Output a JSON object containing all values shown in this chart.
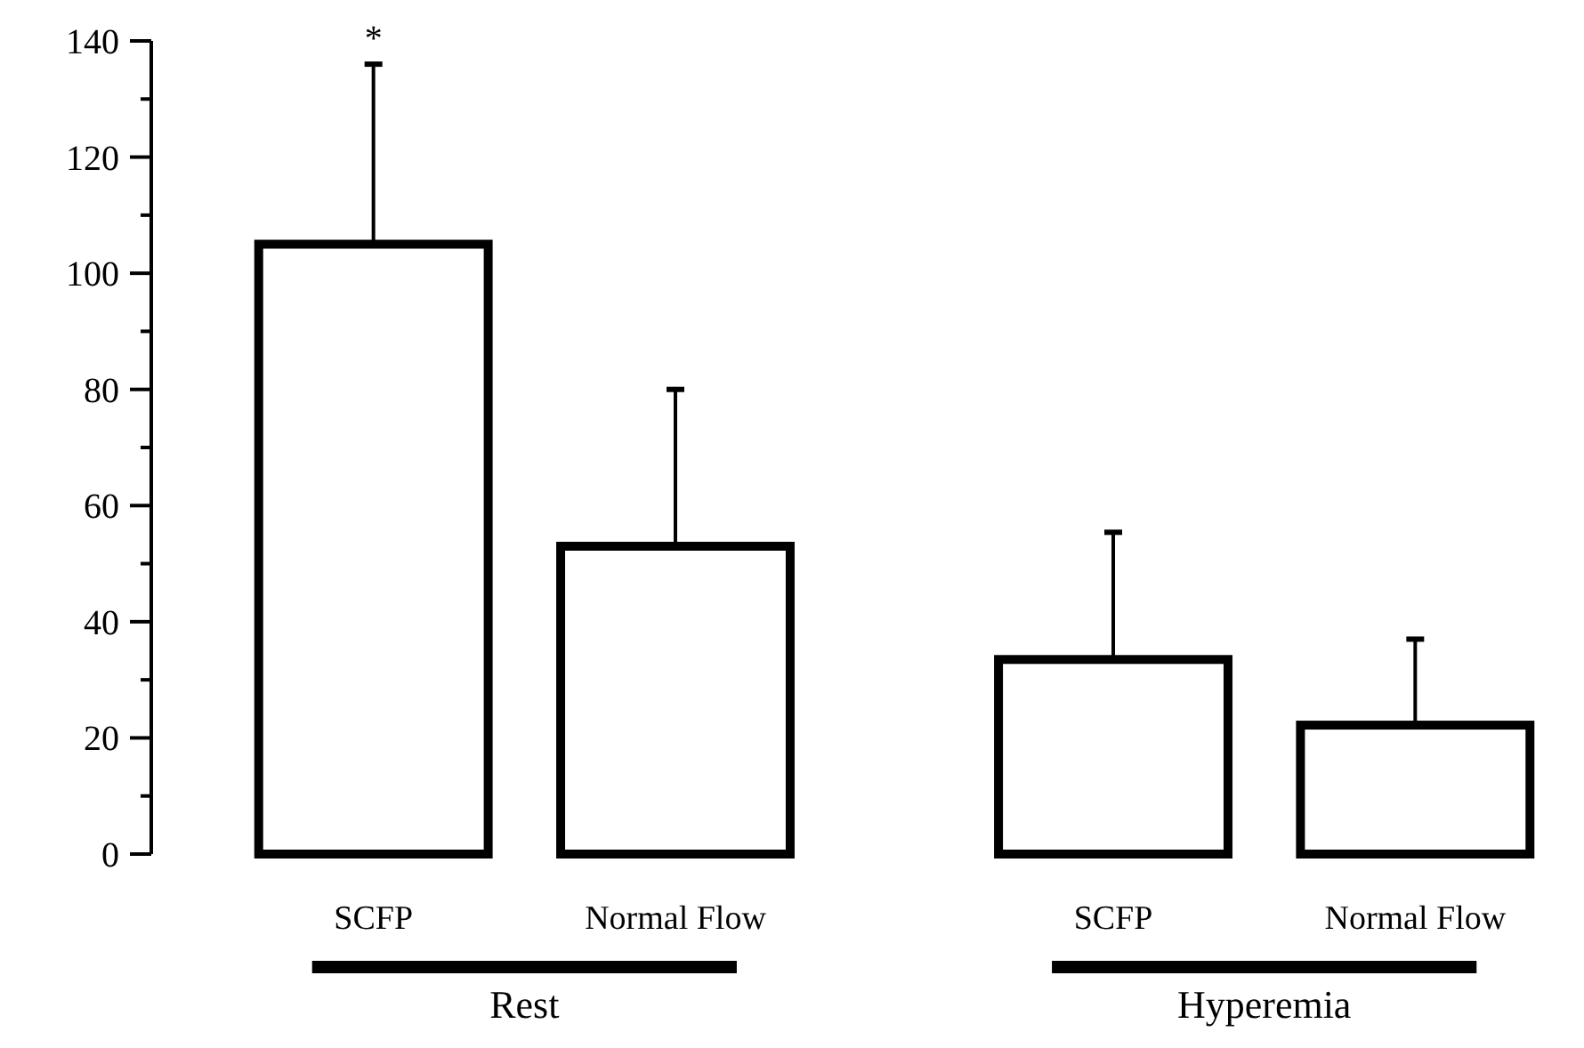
{
  "chart_data": {
    "type": "bar",
    "categories": [
      "SCFP",
      "Normal Flow",
      "SCFP",
      "Normal Flow"
    ],
    "values": [
      105,
      53,
      33.5,
      22.2
    ],
    "errors": [
      [
        105,
        136
      ],
      [
        53,
        80
      ],
      [
        33.5,
        55.4
      ],
      [
        22.2,
        37
      ]
    ],
    "color": "#ffffff",
    "ylim": [
      0,
      140
    ],
    "yticks": [
      0,
      20,
      40,
      60,
      80,
      100,
      120,
      140
    ],
    "annotations": [
      {
        "text": "*",
        "x": "SCFP",
        "y": 136
      },
      "Rest",
      "Hyperemia"
    ]
  }
}
